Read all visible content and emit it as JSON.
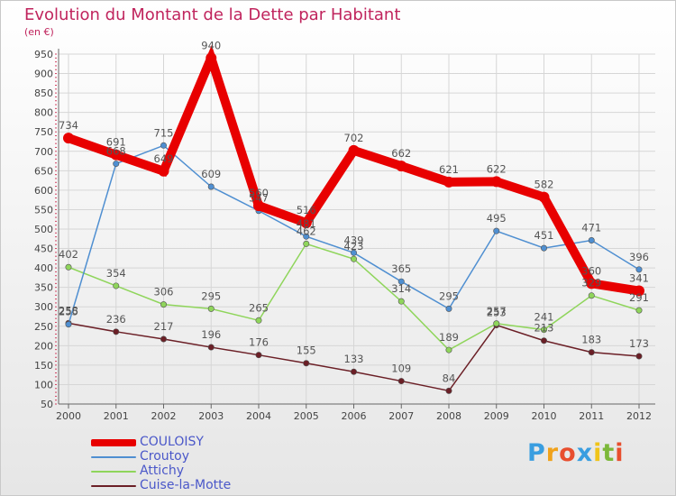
{
  "chart_data": {
    "type": "line",
    "title": "Evolution du Montant de la Dette par Habitant",
    "unit_label": "(en €)",
    "categories": [
      "2000",
      "2001",
      "2002",
      "2003",
      "2004",
      "2005",
      "2006",
      "2007",
      "2008",
      "2009",
      "2010",
      "2011",
      "2012"
    ],
    "ylim": [
      50,
      950
    ],
    "yticks": [
      50,
      100,
      150,
      200,
      250,
      300,
      350,
      400,
      450,
      500,
      550,
      600,
      650,
      700,
      750,
      800,
      850,
      900,
      950
    ],
    "grid": true,
    "legend_position": "bottom-left",
    "series": [
      {
        "name": "Cuise-la-Motte",
        "color": "#6b1f26",
        "values": [
          258,
          236,
          217,
          196,
          176,
          155,
          133,
          109,
          84,
          253,
          213,
          183,
          173
        ]
      },
      {
        "name": "Attichy",
        "color": "#8fd55b",
        "values": [
          402,
          354,
          306,
          295,
          265,
          462,
          423,
          314,
          189,
          257,
          241,
          329,
          291
        ]
      },
      {
        "name": "Croutoy",
        "color": "#4f8fd1",
        "values": [
          255,
          668,
          715,
          609,
          547,
          481,
          439,
          365,
          295,
          495,
          451,
          471,
          396
        ]
      },
      {
        "name": "COULOISY",
        "color": "#e80000",
        "values": [
          734,
          691,
          649,
          940,
          560,
          516,
          702,
          662,
          621,
          622,
          582,
          360,
          341
        ]
      }
    ]
  },
  "legend": [
    {
      "label": "COULOISY",
      "color": "#e80000"
    },
    {
      "label": "Croutoy",
      "color": "#4f8fd1"
    },
    {
      "label": "Attichy",
      "color": "#8fd55b"
    },
    {
      "label": "Cuise-la-Motte",
      "color": "#6b1f26"
    }
  ],
  "brand": {
    "letters": [
      "P",
      "r",
      "o",
      "x",
      "i",
      "t",
      "i"
    ],
    "colors": [
      "#3a9ee0",
      "#f0a21b",
      "#e84e2e",
      "#3a9ee0",
      "#f0c419",
      "#7cb83a",
      "#e84e2e"
    ]
  }
}
